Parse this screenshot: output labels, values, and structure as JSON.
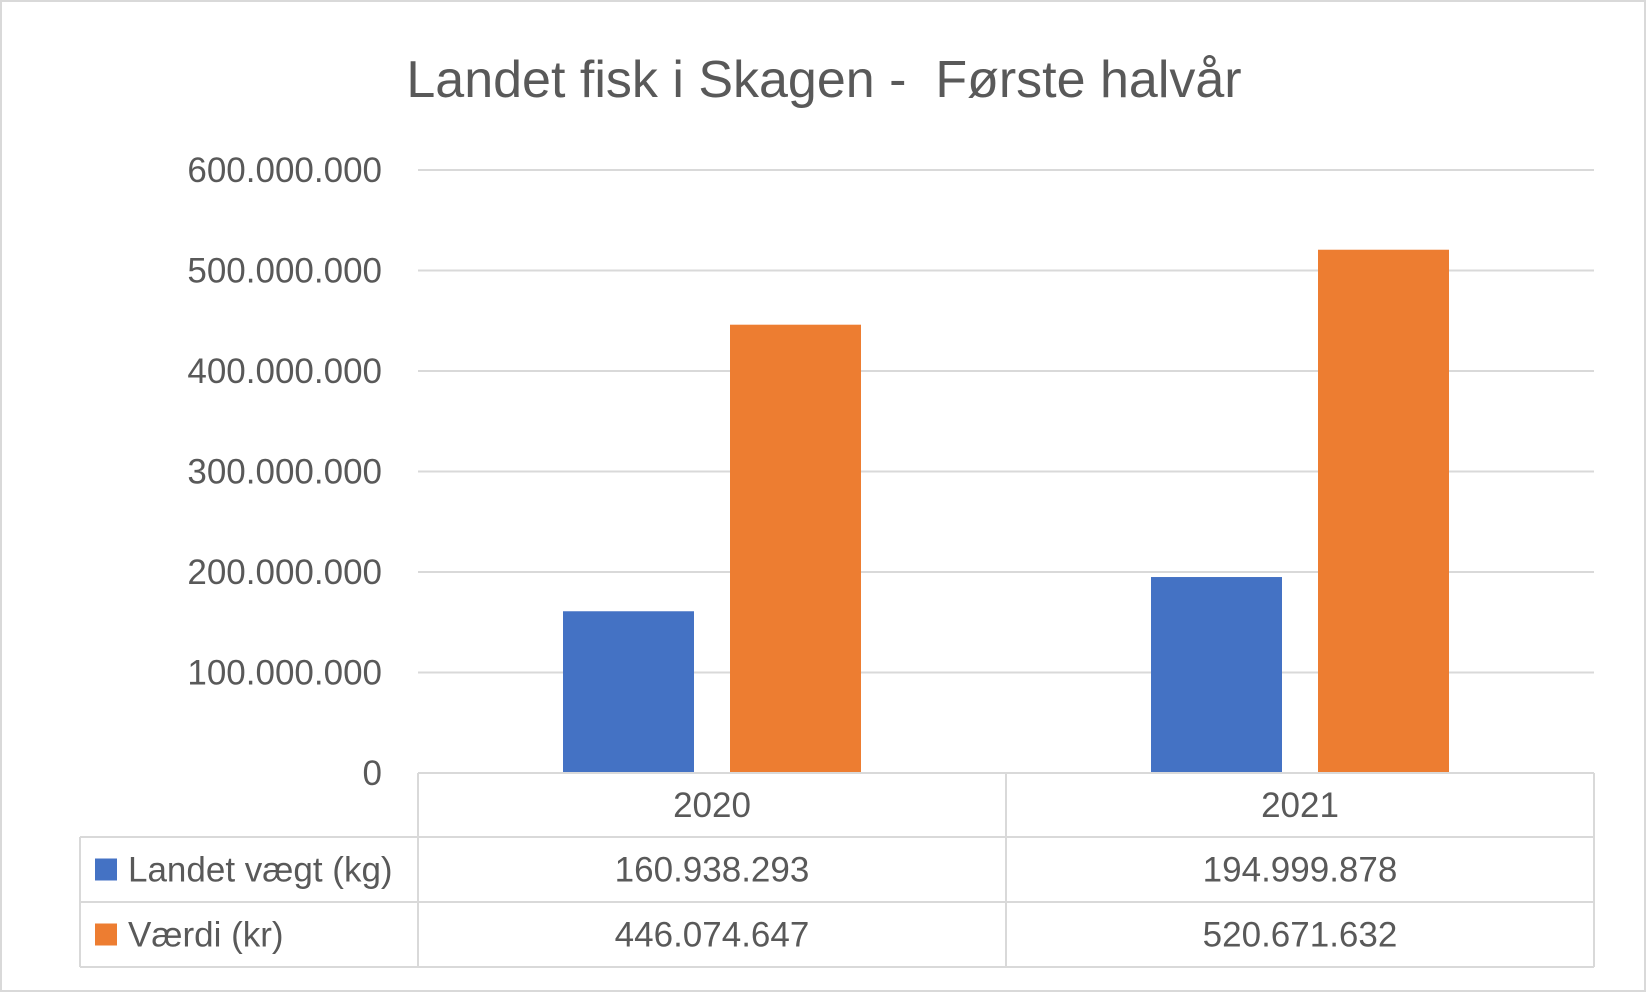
{
  "chart_data": {
    "type": "bar",
    "title": "Landet fisk i Skagen -  Første halvår",
    "categories": [
      "2020",
      "2021"
    ],
    "ylim": [
      0,
      600000000
    ],
    "y_ticks": [
      0,
      100000000,
      200000000,
      300000000,
      400000000,
      500000000,
      600000000
    ],
    "y_tick_labels": [
      "0",
      "100.000.000",
      "200.000.000",
      "300.000.000",
      "400.000.000",
      "500.000.000",
      "600.000.000"
    ],
    "grid": true,
    "legend": "data-table",
    "series": [
      {
        "name": "Landet vægt (kg)",
        "color": "#4472c4",
        "values": [
          160938293,
          194999878
        ],
        "value_labels": [
          "160.938.293",
          "194.999.878"
        ]
      },
      {
        "name": "Værdi (kr)",
        "color": "#ed7d31",
        "values": [
          446074647,
          520671632
        ],
        "value_labels": [
          "446.074.647",
          "520.671.632"
        ]
      }
    ]
  }
}
